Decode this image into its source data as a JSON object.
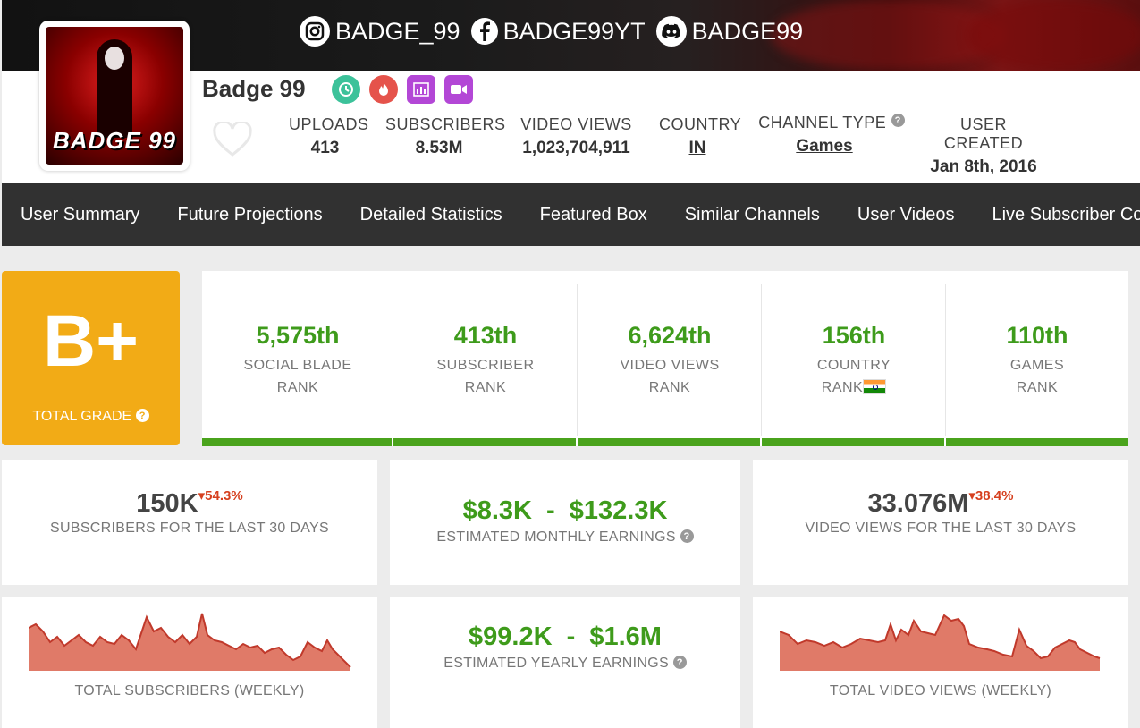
{
  "banner": {
    "socials": [
      {
        "icon": "instagram-icon",
        "label": "BADGE_99"
      },
      {
        "icon": "facebook-icon",
        "label": "BADGE99YT"
      },
      {
        "icon": "discord-icon",
        "label": "BADGE99"
      }
    ]
  },
  "channel": {
    "name": "Badge 99",
    "avatar_text": "BADGE 99",
    "badges": [
      "clock-badge-icon",
      "fire-badge-icon",
      "chart-badge-icon",
      "video-badge-icon"
    ]
  },
  "stats": {
    "uploads": {
      "label": "UPLOADS",
      "value": "413"
    },
    "subscribers": {
      "label": "SUBSCRIBERS",
      "value": "8.53M"
    },
    "video_views": {
      "label": "VIDEO VIEWS",
      "value": "1,023,704,911"
    },
    "country": {
      "label": "COUNTRY",
      "value": "IN"
    },
    "channel_type": {
      "label": "CHANNEL TYPE",
      "value": "Games"
    },
    "user_created": {
      "label": "USER CREATED",
      "value": "Jan 8th, 2016"
    }
  },
  "nav": [
    "User Summary",
    "Future Projections",
    "Detailed Statistics",
    "Featured Box",
    "Similar Channels",
    "User Videos",
    "Live Subscriber Count"
  ],
  "grade": {
    "value": "B+",
    "label": "TOTAL GRADE"
  },
  "ranks": [
    {
      "value": "5,575th",
      "line1": "SOCIAL BLADE",
      "line2": "RANK"
    },
    {
      "value": "413th",
      "line1": "SUBSCRIBER",
      "line2": "RANK"
    },
    {
      "value": "6,624th",
      "line1": "VIDEO VIEWS",
      "line2": "RANK"
    },
    {
      "value": "156th",
      "line1": "COUNTRY",
      "line2": "RANK"
    },
    {
      "value": "110th",
      "line1": "GAMES",
      "line2": "RANK"
    }
  ],
  "cards": {
    "subs30": {
      "value": "150K",
      "change": "54.3%",
      "label": "SUBSCRIBERS FOR THE LAST 30 DAYS"
    },
    "monthly": {
      "low": "$8.3K",
      "sep": "-",
      "high": "$132.3K",
      "label": "ESTIMATED MONTHLY EARNINGS"
    },
    "views30": {
      "value": "33.076M",
      "change": "38.4%",
      "label": "VIDEO VIEWS FOR THE LAST 30 DAYS"
    },
    "yearly": {
      "low": "$99.2K",
      "sep": "-",
      "high": "$1.6M",
      "label": "ESTIMATED YEARLY EARNINGS"
    },
    "subs_weekly": {
      "label": "TOTAL SUBSCRIBERS (WEEKLY)"
    },
    "views_weekly": {
      "label": "TOTAL VIDEO VIEWS (WEEKLY)"
    }
  },
  "colors": {
    "accent_green": "#3e9b1b",
    "rank_bar": "#4aa31c",
    "grade_bg": "#f2ab16",
    "nav_bg": "#313131",
    "change_red": "#d6401f",
    "spark_fill": "#e07a68",
    "spark_line": "#c0392b"
  }
}
